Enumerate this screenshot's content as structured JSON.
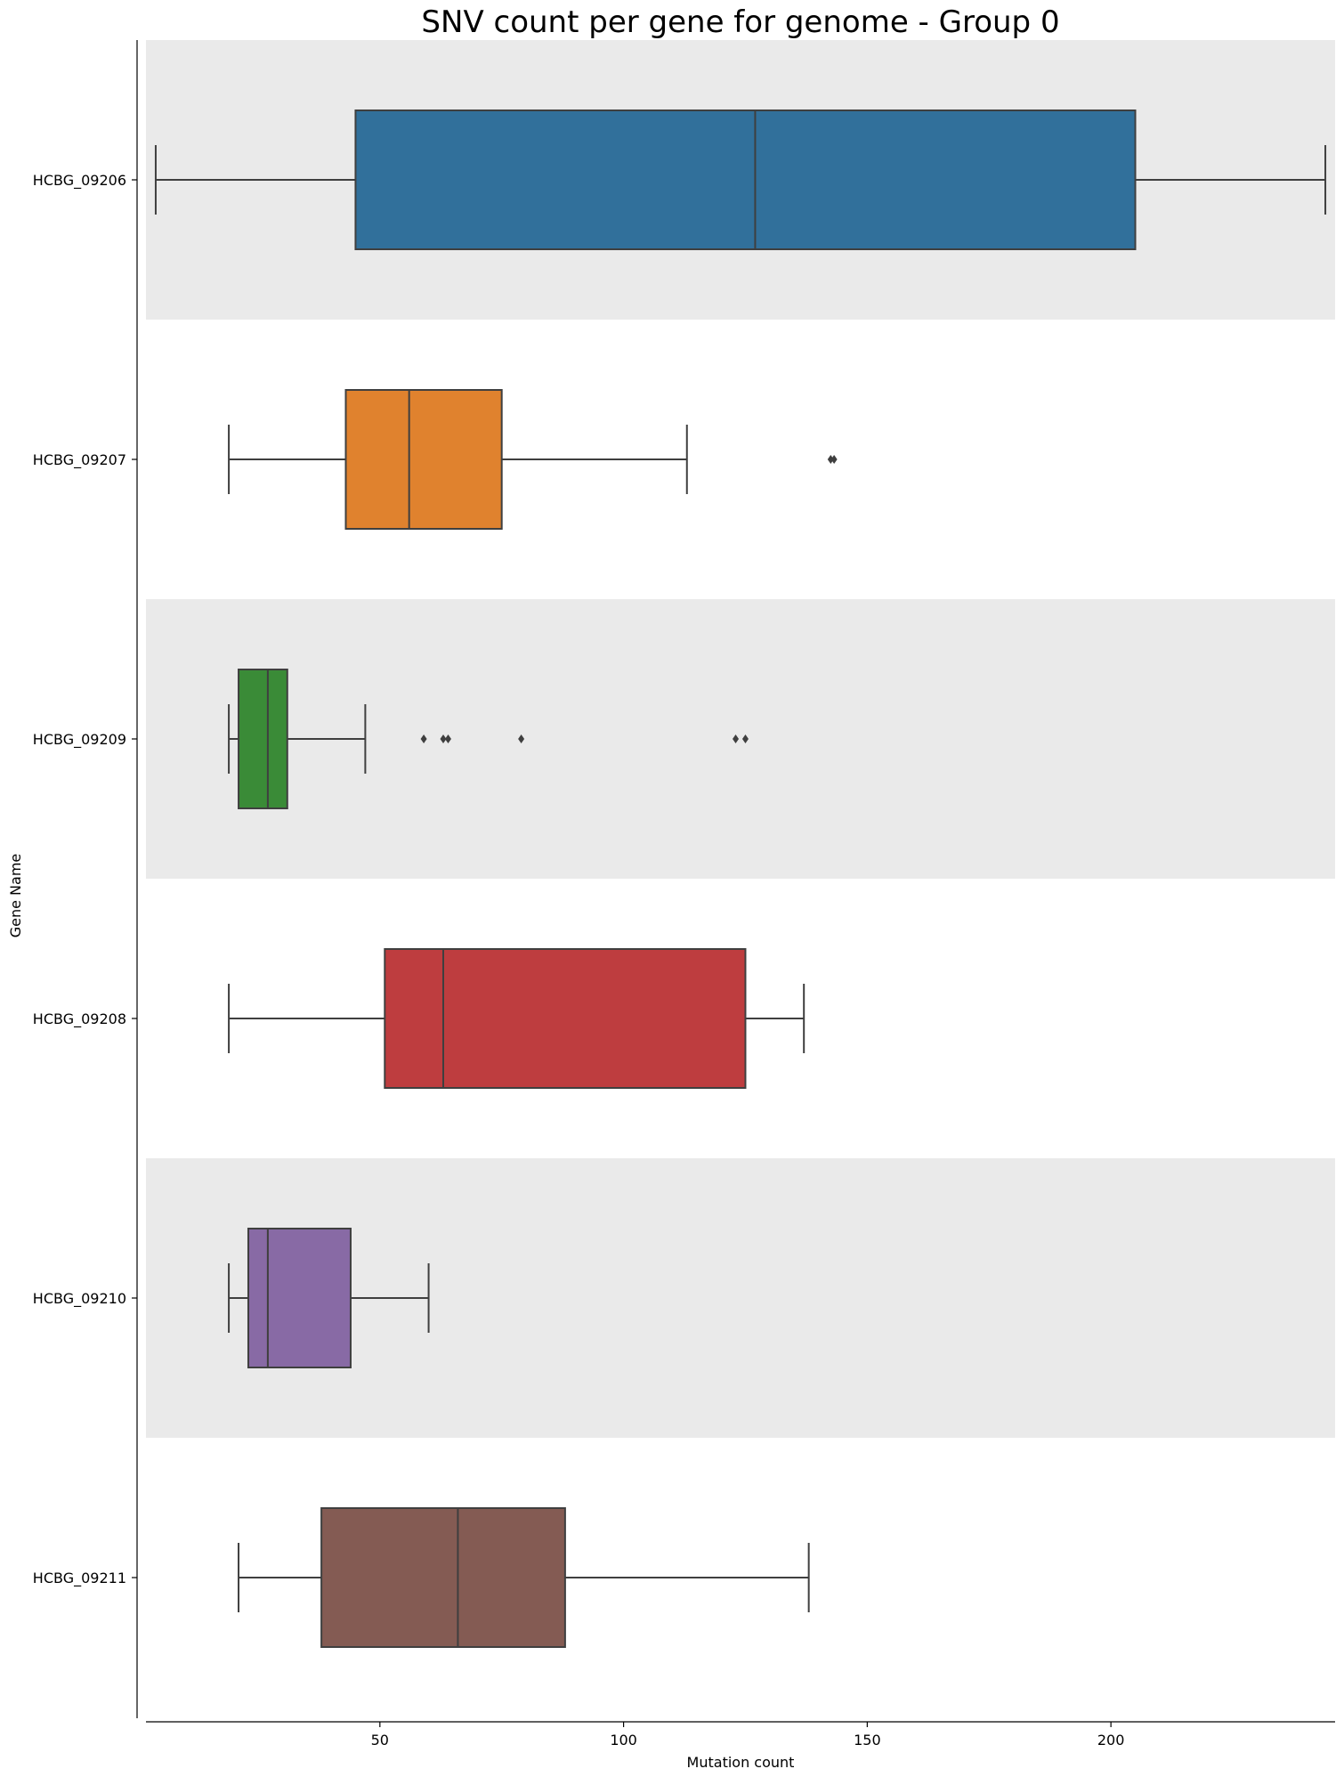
{
  "chart_data": {
    "type": "box",
    "orientation": "horizontal",
    "title": "SNV count per gene for genome - Group 0",
    "xlabel": "Mutation count",
    "ylabel": "Gene Name",
    "xlim": [
      2,
      246
    ],
    "xticks": [
      50,
      100,
      150,
      200
    ],
    "xtick_labels": [
      "50",
      "100",
      "150",
      "200"
    ],
    "grid": false,
    "alternating_row_shading": true,
    "row_shade_color": "#EAEAEA",
    "outline_color": "#3F3F3F",
    "categories": [
      "HCBG_09206",
      "HCBG_09207",
      "HCBG_09209",
      "HCBG_09208",
      "HCBG_09210",
      "HCBG_09211"
    ],
    "boxes": [
      {
        "category": "HCBG_09206",
        "color": "#31709B",
        "whisker_low": 4,
        "q1": 45,
        "median": 127,
        "q3": 205,
        "whisker_high": 244,
        "outliers": []
      },
      {
        "category": "HCBG_09207",
        "color": "#E0822E",
        "whisker_low": 19,
        "q1": 43,
        "median": 56,
        "q3": 75,
        "whisker_high": 113,
        "outliers": [
          142.5,
          143.2
        ]
      },
      {
        "category": "HCBG_09209",
        "color": "#3A8B37",
        "whisker_low": 19,
        "q1": 21,
        "median": 27,
        "q3": 31,
        "whisker_high": 47,
        "outliers": [
          59,
          63,
          64,
          79,
          123,
          125
        ]
      },
      {
        "category": "HCBG_09208",
        "color": "#BE3D3F",
        "whisker_low": 19,
        "q1": 51,
        "median": 63,
        "q3": 125,
        "whisker_high": 137,
        "outliers": []
      },
      {
        "category": "HCBG_09210",
        "color": "#886AA5",
        "whisker_low": 19,
        "q1": 23,
        "median": 27,
        "q3": 44,
        "whisker_high": 60,
        "outliers": []
      },
      {
        "category": "HCBG_09211",
        "color": "#845B53",
        "whisker_low": 21,
        "q1": 38,
        "median": 66,
        "q3": 88,
        "whisker_high": 138,
        "outliers": []
      }
    ]
  }
}
